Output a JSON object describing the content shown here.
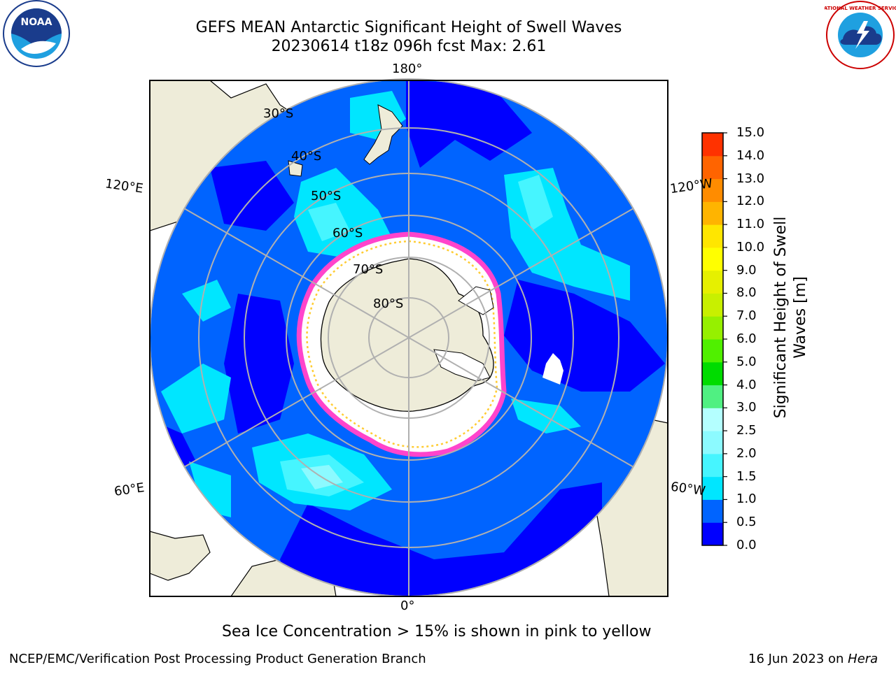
{
  "title_line1": "GEFS MEAN Antarctic Significant Height of Swell Waves",
  "title_line2": "20230614 t18z 096h fcst   Max: 2.61",
  "meridian_labels": {
    "top": "180°",
    "bottom": "0°",
    "left_upper": "120°E",
    "left_lower": "60°E",
    "right_upper": "120°W",
    "right_lower": "60°W"
  },
  "latitude_labels": [
    "30°S",
    "40°S",
    "50°S",
    "60°S",
    "70°S",
    "80°S"
  ],
  "note": "Sea Ice Concentration > 15% is shown in pink to yellow",
  "footer_left": "NCEP/EMC/Verification Post Processing Product Generation Branch",
  "footer_right_date": "16 Jun 2023 on ",
  "footer_right_host": "Hera",
  "logos": {
    "left": "NOAA",
    "right": "NATIONAL WEATHER SERVICE"
  },
  "colorbar": {
    "title_line1": "Significant Height of Swell",
    "title_line2": "Waves [m]",
    "ticks": [
      "0.0",
      "0.5",
      "1.0",
      "1.5",
      "2.0",
      "2.5",
      "3.0",
      "4.0",
      "5.0",
      "6.0",
      "7.0",
      "8.0",
      "9.0",
      "10.0",
      "11.0",
      "12.0",
      "13.0",
      "14.0",
      "15.0"
    ],
    "colors": [
      "#0000ff",
      "#0064ff",
      "#00e6ff",
      "#46f5ff",
      "#8cfaff",
      "#b4ffff",
      "#50f082",
      "#00dc00",
      "#50f000",
      "#96f000",
      "#c8f000",
      "#e6f000",
      "#ffff00",
      "#ffe600",
      "#ffb400",
      "#ff8c00",
      "#ff6400",
      "#ff3200",
      "#ff0000"
    ]
  },
  "colors": {
    "land": "#eeecd9",
    "ice_shelf": "#ffffff",
    "ice_edge_pink": "#ff44cc",
    "ice_edge_yellow": "#ffcc33",
    "grid": "#b0b0b0"
  }
}
